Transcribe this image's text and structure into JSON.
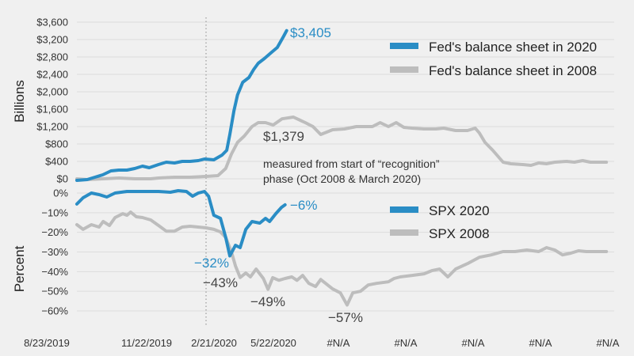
{
  "chart_data": [
    {
      "type": "line",
      "panel": "balance-sheet",
      "ylabel": "Billions",
      "yticks": [
        "$0",
        "$400",
        "$800",
        "$1,200",
        "$1,600",
        "$2,000",
        "$2,400",
        "$2,800",
        "$3,200",
        "$3,600"
      ],
      "ylim": [
        0,
        3600
      ],
      "xlim_weeks": [
        0,
        104
      ],
      "grid": true,
      "legend_position": "top-right",
      "series": [
        {
          "name": "Fed's balance sheet in 2020",
          "color": "#2a8dc5",
          "points": [
            [
              0,
              -36
            ],
            [
              2,
              -18
            ],
            [
              3.5,
              36
            ],
            [
              5,
              91
            ],
            [
              6.6,
              182
            ],
            [
              8.1,
              200
            ],
            [
              9.7,
              200
            ],
            [
              11.2,
              236
            ],
            [
              12.7,
              291
            ],
            [
              14,
              255
            ],
            [
              15.8,
              327
            ],
            [
              17.3,
              382
            ],
            [
              18.9,
              364
            ],
            [
              20.4,
              400
            ],
            [
              21.9,
              400
            ],
            [
              23.5,
              418
            ],
            [
              24.7,
              455
            ],
            [
              26.5,
              436
            ],
            [
              28.1,
              545
            ],
            [
              29,
              655
            ],
            [
              29.6,
              1018
            ],
            [
              30.4,
              1564
            ],
            [
              31.1,
              1927
            ],
            [
              32.1,
              2218
            ],
            [
              33.3,
              2327
            ],
            [
              34.2,
              2509
            ],
            [
              35.1,
              2655
            ],
            [
              36.3,
              2764
            ],
            [
              37.7,
              2909
            ],
            [
              38.8,
              3018
            ],
            [
              40,
              3273
            ],
            [
              40.6,
              3405
            ]
          ]
        },
        {
          "name": "Fed's balance sheet in 2008",
          "color": "#bdbdbd",
          "points": [
            [
              0,
              0
            ],
            [
              2,
              -18
            ],
            [
              5.1,
              0
            ],
            [
              8.1,
              18
            ],
            [
              11.2,
              0
            ],
            [
              14.3,
              0
            ],
            [
              15.8,
              18
            ],
            [
              18.9,
              36
            ],
            [
              21.9,
              36
            ],
            [
              25,
              55
            ],
            [
              27.3,
              73
            ],
            [
              28.8,
              236
            ],
            [
              29.9,
              564
            ],
            [
              31.1,
              836
            ],
            [
              32.4,
              982
            ],
            [
              33.9,
              1200
            ],
            [
              35.1,
              1291
            ],
            [
              36.5,
              1291
            ],
            [
              38,
              1236
            ],
            [
              39.7,
              1379
            ],
            [
              41.9,
              1418
            ],
            [
              44.2,
              1291
            ],
            [
              45.7,
              1200
            ],
            [
              47.2,
              1018
            ],
            [
              49.5,
              1127
            ],
            [
              51.8,
              1145
            ],
            [
              54.1,
              1200
            ],
            [
              57.2,
              1200
            ],
            [
              58.7,
              1291
            ],
            [
              60.3,
              1200
            ],
            [
              61.8,
              1291
            ],
            [
              63.3,
              1182
            ],
            [
              64.9,
              1164
            ],
            [
              67.2,
              1145
            ],
            [
              69.5,
              1145
            ],
            [
              71,
              1164
            ],
            [
              73.3,
              1109
            ],
            [
              75.6,
              1109
            ],
            [
              77.1,
              1164
            ],
            [
              77.9,
              1055
            ],
            [
              79,
              836
            ],
            [
              80.5,
              655
            ],
            [
              82.5,
              382
            ],
            [
              84,
              345
            ],
            [
              86.3,
              327
            ],
            [
              87.9,
              309
            ],
            [
              89.4,
              364
            ],
            [
              90.9,
              345
            ],
            [
              92.5,
              382
            ],
            [
              94.8,
              400
            ],
            [
              96.3,
              382
            ],
            [
              97.9,
              418
            ],
            [
              99.4,
              382
            ],
            [
              101.7,
              382
            ],
            [
              102.5,
              382
            ]
          ]
        }
      ],
      "annotations": [
        {
          "text": "$3,405",
          "series": "Fed's balance sheet in 2020",
          "color": "#2a8dc5"
        },
        {
          "text": "$1,379",
          "series": "Fed's balance sheet in 2008",
          "color": "#444444"
        }
      ]
    },
    {
      "type": "line",
      "panel": "spx",
      "ylabel": "Percent",
      "yticks": [
        "0%",
        "−10%",
        "−20%",
        "−30%",
        "−40%",
        "−50%",
        "−60%"
      ],
      "ylim": [
        -60,
        0
      ],
      "xlim_weeks": [
        0,
        104
      ],
      "grid": true,
      "legend_position": "right",
      "series": [
        {
          "name": "SPX 2020",
          "color": "#2a8dc5",
          "points": [
            [
              0,
              -5.6
            ],
            [
              1.2,
              -2.4
            ],
            [
              2.8,
              0
            ],
            [
              4.3,
              -0.8
            ],
            [
              5.8,
              -2
            ],
            [
              7.4,
              0
            ],
            [
              9.7,
              0.8
            ],
            [
              12.7,
              0.8
            ],
            [
              15.8,
              0.8
            ],
            [
              18.1,
              0.4
            ],
            [
              19.6,
              1.2
            ],
            [
              21.2,
              0.8
            ],
            [
              22.4,
              -1.6
            ],
            [
              23.5,
              0
            ],
            [
              24.7,
              0.8
            ],
            [
              25.5,
              -1.6
            ],
            [
              26.5,
              -11.3
            ],
            [
              27.8,
              -12.9
            ],
            [
              28.8,
              -22.6
            ],
            [
              29.6,
              -32
            ],
            [
              30.7,
              -26.6
            ],
            [
              31.6,
              -27.8
            ],
            [
              32.7,
              -18.5
            ],
            [
              33.9,
              -14.5
            ],
            [
              35.4,
              -15.3
            ],
            [
              36.5,
              -12.9
            ],
            [
              37.3,
              -14.5
            ],
            [
              38.5,
              -10.5
            ],
            [
              39.6,
              -7.3
            ],
            [
              40.3,
              -6
            ]
          ]
        },
        {
          "name": "SPX 2008",
          "color": "#bdbdbd",
          "points": [
            [
              0,
              -16.1
            ],
            [
              1.2,
              -18.5
            ],
            [
              2.8,
              -16.1
            ],
            [
              4.3,
              -17.3
            ],
            [
              5.1,
              -14.5
            ],
            [
              6.3,
              -16.5
            ],
            [
              7.4,
              -12.5
            ],
            [
              8.9,
              -10.5
            ],
            [
              9.7,
              -11.3
            ],
            [
              10.4,
              -9.7
            ],
            [
              11.5,
              -12.1
            ],
            [
              12.7,
              -12.5
            ],
            [
              14.3,
              -13.7
            ],
            [
              15.8,
              -16.5
            ],
            [
              17.3,
              -19.4
            ],
            [
              18.9,
              -19.4
            ],
            [
              20.4,
              -17.3
            ],
            [
              21.9,
              -16.9
            ],
            [
              23.5,
              -17.3
            ],
            [
              25,
              -17.7
            ],
            [
              26.5,
              -18.5
            ],
            [
              27.8,
              -19.8
            ],
            [
              28.8,
              -22.6
            ],
            [
              29.9,
              -29.8
            ],
            [
              30.7,
              -37.1
            ],
            [
              31.6,
              -43
            ],
            [
              32.7,
              -40.7
            ],
            [
              33.6,
              -42.7
            ],
            [
              34.7,
              -38.7
            ],
            [
              36.1,
              -43.5
            ],
            [
              37,
              -49
            ],
            [
              37.9,
              -43.1
            ],
            [
              39.1,
              -44.4
            ],
            [
              40.3,
              -43.5
            ],
            [
              41.6,
              -42.7
            ],
            [
              42.6,
              -44.4
            ],
            [
              43.7,
              -41.9
            ],
            [
              44.9,
              -46
            ],
            [
              46.2,
              -47.6
            ],
            [
              47.2,
              -44
            ],
            [
              49.5,
              -48.8
            ],
            [
              51,
              -50.8
            ],
            [
              52.3,
              -57
            ],
            [
              53.4,
              -50.8
            ],
            [
              54.9,
              -50
            ],
            [
              56.4,
              -46.8
            ],
            [
              58,
              -46
            ],
            [
              60.3,
              -45.2
            ],
            [
              61.4,
              -43.5
            ],
            [
              62.6,
              -42.7
            ],
            [
              64.9,
              -41.9
            ],
            [
              67.2,
              -41.1
            ],
            [
              68.7,
              -39.5
            ],
            [
              70.2,
              -38.7
            ],
            [
              71.8,
              -42.7
            ],
            [
              73.3,
              -38.7
            ],
            [
              75.6,
              -35.9
            ],
            [
              77.9,
              -32.7
            ],
            [
              80.2,
              -31.5
            ],
            [
              82.5,
              -29.8
            ],
            [
              84.8,
              -29.8
            ],
            [
              87.1,
              -29
            ],
            [
              89.4,
              -29.8
            ],
            [
              90.9,
              -27.8
            ],
            [
              92.5,
              -29
            ],
            [
              94,
              -31.5
            ],
            [
              95.6,
              -30.6
            ],
            [
              97.1,
              -29.4
            ],
            [
              98.6,
              -29.8
            ],
            [
              102.5,
              -29.8
            ]
          ]
        }
      ],
      "annotations": [
        {
          "text": "−6%",
          "series": "SPX 2020",
          "color": "#2a8dc5"
        },
        {
          "text": "−32%",
          "series": "SPX 2020",
          "color": "#2a8dc5"
        },
        {
          "text": "−43%",
          "series": "SPX 2008",
          "color": "#444444"
        },
        {
          "text": "−49%",
          "series": "SPX 2008",
          "color": "#444444"
        },
        {
          "text": "−57%",
          "series": "SPX 2008",
          "color": "#444444"
        }
      ]
    }
  ],
  "xaxis": {
    "tick_labels": [
      "8/23/2019",
      "11/22/2019",
      "2/21/2020",
      "5/22/2020",
      "#N/A",
      "#N/A",
      "#N/A",
      "#N/A",
      "#N/A"
    ],
    "marker_label": "2/21/2020"
  },
  "note": {
    "line1": "measured from start of “recognition”",
    "line2": "phase (Oct 2008 & March 2020)"
  },
  "colors": {
    "blue": "#2a8dc5",
    "gray": "#bdbdbd",
    "background": "#f0f0f0"
  }
}
